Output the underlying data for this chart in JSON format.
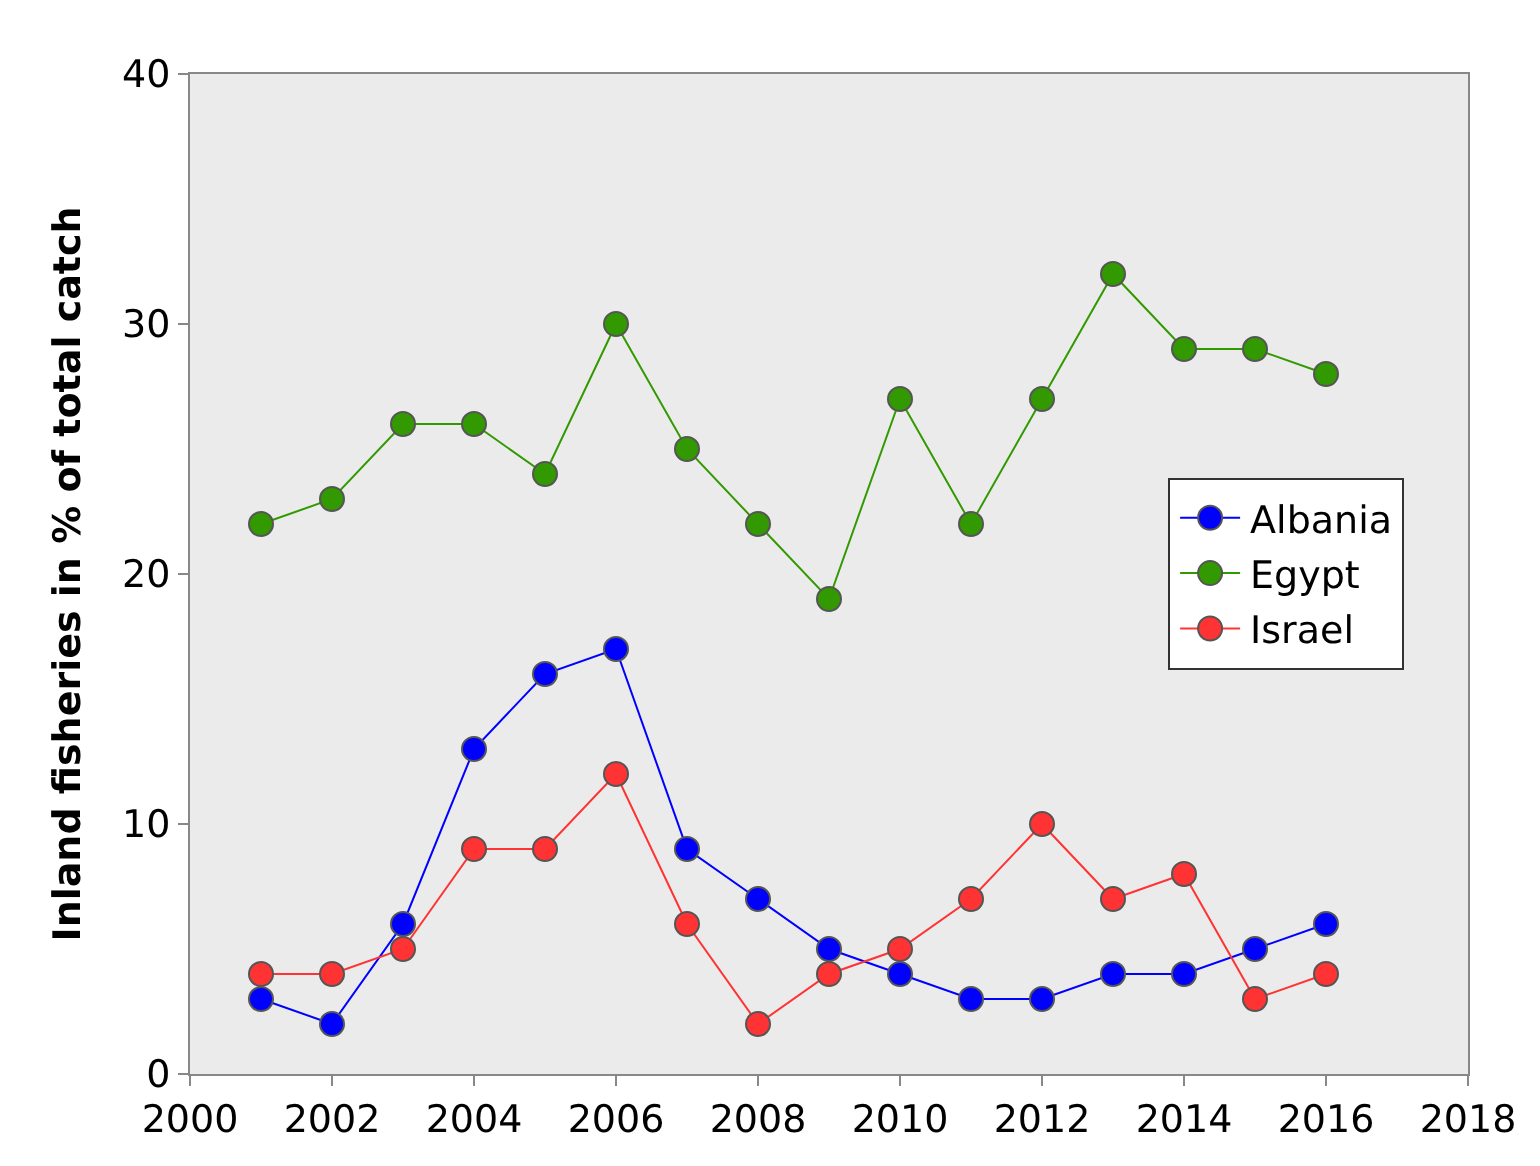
{
  "chart_data": {
    "type": "line",
    "ylabel": "Inland fisheries in % of total catch",
    "x": [
      2001,
      2002,
      2003,
      2004,
      2005,
      2006,
      2007,
      2008,
      2009,
      2010,
      2011,
      2012,
      2013,
      2014,
      2015,
      2016
    ],
    "series": [
      {
        "name": "Albania",
        "color": "#0000ff",
        "values": [
          3,
          2,
          6,
          13,
          16,
          17,
          9,
          7,
          5,
          4,
          3,
          3,
          4,
          4,
          5,
          6
        ]
      },
      {
        "name": "Egypt",
        "color": "#339900",
        "values": [
          22,
          23,
          26,
          26,
          24,
          30,
          25,
          22,
          19,
          27,
          22,
          27,
          32,
          29,
          29,
          28
        ]
      },
      {
        "name": "Israel",
        "color": "#ff3333",
        "values": [
          4,
          4,
          5,
          9,
          9,
          12,
          6,
          2,
          4,
          5,
          7,
          10,
          7,
          8,
          3,
          4
        ]
      }
    ],
    "xlim": [
      2000,
      2018
    ],
    "xticks": [
      2000,
      2002,
      2004,
      2006,
      2008,
      2010,
      2012,
      2014,
      2016,
      2018
    ],
    "ylim": [
      0,
      40
    ],
    "yticks": [
      0,
      10,
      20,
      30,
      40
    ],
    "grid": false,
    "legend": "right",
    "marker": "circle",
    "line_style": "solid"
  }
}
